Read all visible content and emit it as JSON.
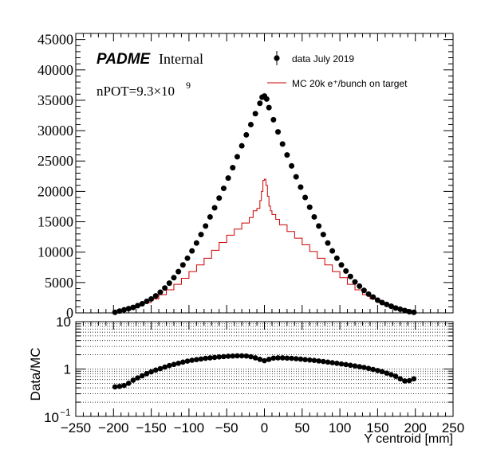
{
  "chart_data": [
    {
      "type": "scatter",
      "panel": "main",
      "title": "",
      "xlabel": "",
      "ylabel": "",
      "xlim": [
        -250,
        250
      ],
      "ylim": [
        0,
        46000
      ],
      "grid": false,
      "legend_placement": "top-right",
      "xticks": [
        -250,
        -200,
        -150,
        -100,
        -50,
        0,
        50,
        100,
        150,
        200,
        250
      ],
      "yticks": [
        0,
        5000,
        10000,
        15000,
        20000,
        25000,
        30000,
        35000,
        40000,
        45000
      ],
      "yticklabels": [
        "0",
        "5000",
        "10000",
        "15000",
        "20000",
        "25000",
        "30000",
        "35000",
        "40000",
        "45000"
      ],
      "annotations": {
        "experiment": "PADME",
        "status": "Internal",
        "npot_prefix": "nPOT=9.3×10",
        "npot_exponent": "9"
      },
      "series": [
        {
          "name": "data July 2019",
          "style": "markers",
          "color": "#000000",
          "x": [
            -198,
            -192,
            -186,
            -180,
            -174,
            -168,
            -162,
            -156,
            -150,
            -144,
            -138,
            -132,
            -126,
            -120,
            -114,
            -108,
            -102,
            -96,
            -90,
            -84,
            -78,
            -72,
            -66,
            -60,
            -54,
            -48,
            -42,
            -36,
            -30,
            -24,
            -18,
            -12,
            -6,
            -3,
            0,
            3,
            6,
            12,
            18,
            24,
            30,
            36,
            42,
            48,
            54,
            60,
            66,
            72,
            78,
            84,
            90,
            96,
            102,
            108,
            114,
            120,
            126,
            132,
            138,
            144,
            150,
            156,
            162,
            168,
            174,
            180,
            186,
            192,
            198
          ],
          "y": [
            100,
            300,
            500,
            700,
            900,
            1200,
            1500,
            1900,
            2300,
            2800,
            3400,
            4100,
            4900,
            5800,
            6800,
            7900,
            9000,
            10200,
            11500,
            12900,
            14300,
            15800,
            17300,
            18900,
            20500,
            22200,
            23900,
            25700,
            27500,
            29300,
            31000,
            32800,
            34500,
            35500,
            35700,
            35200,
            33800,
            31800,
            29800,
            27800,
            26000,
            24200,
            22400,
            20700,
            19000,
            17400,
            15800,
            14300,
            12900,
            11500,
            10200,
            9000,
            7900,
            6900,
            6000,
            5100,
            4400,
            3700,
            3100,
            2600,
            2100,
            1700,
            1400,
            1100,
            800,
            600,
            400,
            200,
            100
          ]
        },
        {
          "name": "MC 20k e⁺/bunch on target",
          "style": "step",
          "color": "#cc0000",
          "x": [
            -200,
            -190,
            -180,
            -170,
            -160,
            -150,
            -140,
            -130,
            -120,
            -110,
            -100,
            -90,
            -80,
            -70,
            -60,
            -50,
            -40,
            -30,
            -20,
            -15,
            -10,
            -6,
            -4,
            -2,
            0,
            2,
            4,
            6,
            8,
            10,
            15,
            20,
            30,
            40,
            50,
            60,
            70,
            80,
            90,
            100,
            110,
            120,
            130,
            140,
            150,
            160,
            170,
            180,
            190,
            200
          ],
          "y": [
            200,
            500,
            800,
            1200,
            1700,
            2300,
            3000,
            3800,
            4700,
            5700,
            6800,
            7900,
            9000,
            10300,
            11600,
            12800,
            13800,
            14800,
            15700,
            16800,
            17200,
            18500,
            20000,
            21800,
            22000,
            21000,
            19200,
            17600,
            16800,
            16200,
            15400,
            14500,
            13400,
            12300,
            11200,
            10100,
            9000,
            7900,
            6800,
            5800,
            4700,
            3800,
            3000,
            2300,
            1700,
            1200,
            800,
            500,
            300,
            100
          ]
        }
      ]
    },
    {
      "type": "scatter",
      "panel": "ratio",
      "title": "",
      "xlabel": "Y centroid [mm]",
      "ylabel": "Data/MC",
      "xlim": [
        -250,
        250
      ],
      "ylim": [
        0.1,
        10
      ],
      "yscale": "log",
      "grid": true,
      "xticks": [
        -250,
        -200,
        -150,
        -100,
        -50,
        0,
        50,
        100,
        150,
        200,
        250
      ],
      "xticklabels": [
        "−250",
        "−200",
        "−150",
        "−100",
        "−50",
        "0",
        "50",
        "100",
        "150",
        "200",
        "250"
      ],
      "series": [
        {
          "style": "markers",
          "color": "#000000",
          "x": [
            -198,
            -192,
            -186,
            -180,
            -174,
            -168,
            -162,
            -156,
            -150,
            -144,
            -138,
            -132,
            -126,
            -120,
            -114,
            -108,
            -102,
            -96,
            -90,
            -84,
            -78,
            -72,
            -66,
            -60,
            -54,
            -48,
            -42,
            -36,
            -30,
            -24,
            -18,
            -12,
            -6,
            0,
            6,
            12,
            18,
            24,
            30,
            36,
            42,
            48,
            54,
            60,
            66,
            72,
            78,
            84,
            90,
            96,
            102,
            108,
            114,
            120,
            126,
            132,
            138,
            144,
            150,
            156,
            162,
            168,
            174,
            180,
            186,
            192,
            198
          ],
          "y": [
            0.42,
            0.43,
            0.45,
            0.5,
            0.58,
            0.65,
            0.72,
            0.8,
            0.87,
            0.95,
            1.02,
            1.1,
            1.18,
            1.25,
            1.32,
            1.4,
            1.47,
            1.53,
            1.58,
            1.63,
            1.68,
            1.72,
            1.76,
            1.8,
            1.83,
            1.86,
            1.88,
            1.9,
            1.9,
            1.88,
            1.82,
            1.72,
            1.6,
            1.5,
            1.6,
            1.7,
            1.72,
            1.72,
            1.7,
            1.68,
            1.65,
            1.62,
            1.58,
            1.55,
            1.52,
            1.48,
            1.44,
            1.4,
            1.36,
            1.32,
            1.28,
            1.24,
            1.2,
            1.16,
            1.12,
            1.08,
            1.03,
            0.98,
            0.93,
            0.88,
            0.82,
            0.76,
            0.7,
            0.62,
            0.56,
            0.57,
            0.62
          ]
        }
      ]
    }
  ]
}
